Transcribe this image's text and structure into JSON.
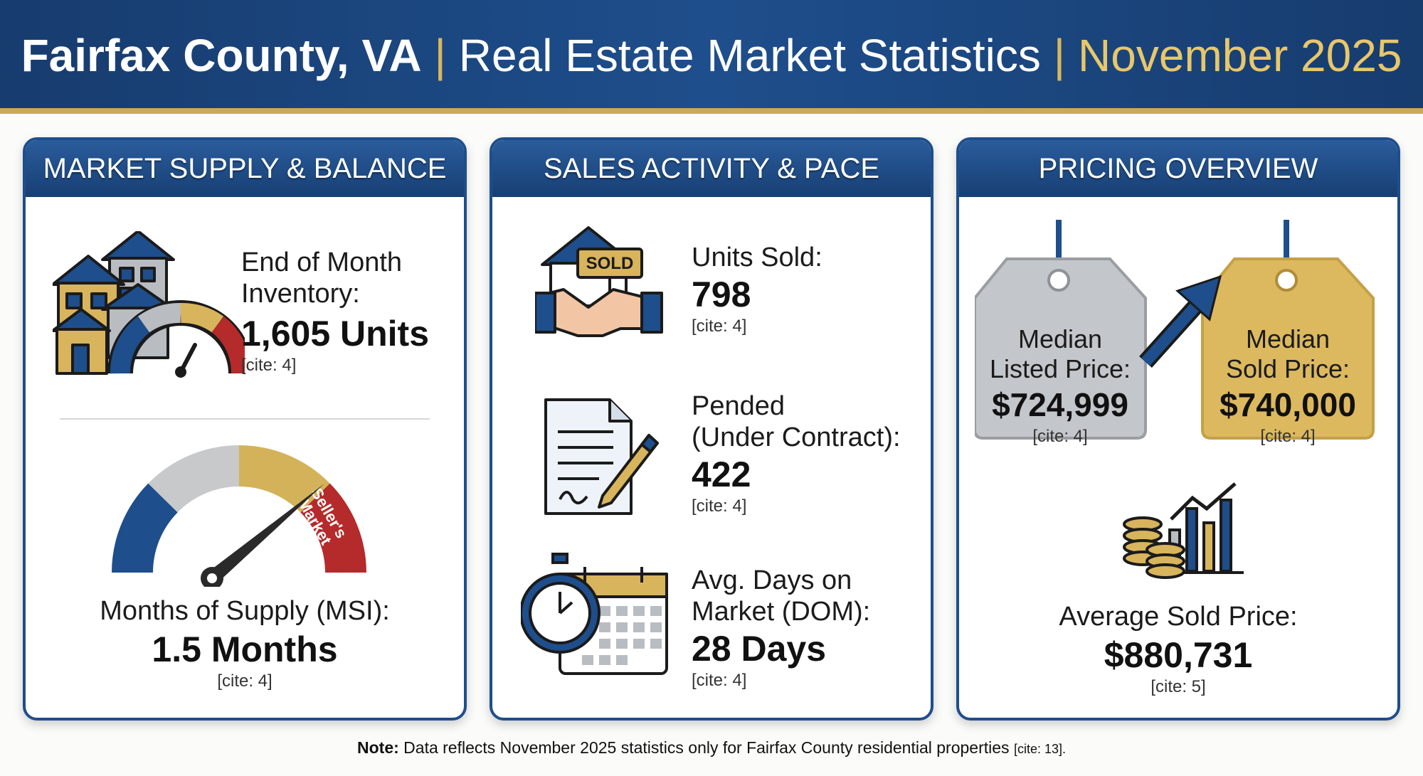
{
  "header": {
    "title_bold": "Fairfax County, VA",
    "sep": "|",
    "title_mid": "Real Estate Market Statistics",
    "title_date": "November 2025"
  },
  "supply": {
    "heading": "MARKET SUPPLY & BALANCE",
    "inventory_label_1": "End of Month",
    "inventory_label_2": "Inventory:",
    "inventory_value": "1,605 Units",
    "inventory_cite": "[cite: 4]",
    "gauge_text_1": "Seller's",
    "gauge_text_2": "Market",
    "msi_label": "Months of Supply (MSI):",
    "msi_value": "1.5 Months",
    "msi_cite": "[cite: 4]"
  },
  "sales": {
    "heading": "SALES ACTIVITY & PACE",
    "sold_sign": "SOLD",
    "sold_label": "Units Sold:",
    "sold_value": "798",
    "sold_cite": "[cite: 4]",
    "pended_label_1": "Pended",
    "pended_label_2": "(Under Contract):",
    "pended_value": "422",
    "pended_cite": "[cite: 4]",
    "dom_label_1": "Avg. Days on",
    "dom_label_2": "Market (DOM):",
    "dom_value": "28 Days",
    "dom_cite": "[cite: 4]"
  },
  "pricing": {
    "heading": "PRICING OVERVIEW",
    "listed_label_1": "Median",
    "listed_label_2": "Listed Price:",
    "listed_value": "$724,999",
    "listed_cite": "[cite: 4]",
    "sold_label_1": "Median",
    "sold_label_2": "Sold Price:",
    "sold_value": "$740,000",
    "sold_cite": "[cite: 4]",
    "avg_label": "Average Sold Price:",
    "avg_value": "$880,731",
    "avg_cite": "[cite: 5]"
  },
  "footer": {
    "note_bold": "Note:",
    "note_text": "Data reflects November 2025 statistics only for Fairfax County residential properties",
    "note_cite": "[cite: 13]."
  },
  "colors": {
    "navy": "#1e4e8c",
    "gold": "#c9aa55",
    "red": "#b52a2a",
    "silver": "#b9bcc0"
  }
}
